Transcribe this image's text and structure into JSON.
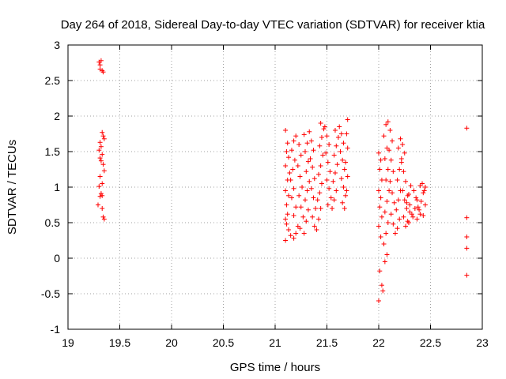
{
  "chart_data": {
    "type": "scatter",
    "title": "Day 264 of 2018, Sidereal Day-to-day VTEC variation (SDTVAR) for receiver ktia",
    "xlabel": "GPS time / hours",
    "ylabel": "SDTVAR / TECUs",
    "xlim": [
      19,
      23
    ],
    "ylim": [
      -1,
      3
    ],
    "xticks": [
      "19",
      "19.5",
      "20",
      "20.5",
      "21",
      "21.5",
      "22",
      "22.5",
      "23"
    ],
    "yticks": [
      "-1",
      "-0.5",
      "0",
      "0.5",
      "1",
      "1.5",
      "2",
      "2.5",
      "3"
    ],
    "grid": true,
    "marker": "+",
    "series": [
      {
        "name": "SDTVAR",
        "color": "#ff0000",
        "points": [
          [
            19.3,
            2.76
          ],
          [
            19.31,
            2.72
          ],
          [
            19.32,
            2.78
          ],
          [
            19.31,
            2.66
          ],
          [
            19.33,
            2.64
          ],
          [
            19.34,
            2.62
          ],
          [
            19.33,
            1.77
          ],
          [
            19.34,
            1.72
          ],
          [
            19.35,
            1.68
          ],
          [
            19.31,
            1.63
          ],
          [
            19.32,
            1.57
          ],
          [
            19.3,
            1.52
          ],
          [
            19.33,
            1.46
          ],
          [
            19.31,
            1.41
          ],
          [
            19.32,
            1.37
          ],
          [
            19.34,
            1.32
          ],
          [
            19.35,
            1.23
          ],
          [
            19.31,
            1.15
          ],
          [
            19.33,
            1.05
          ],
          [
            19.3,
            1.01
          ],
          [
            19.32,
            0.91
          ],
          [
            19.31,
            0.87
          ],
          [
            19.33,
            0.88
          ],
          [
            19.29,
            0.75
          ],
          [
            19.33,
            0.7
          ],
          [
            19.34,
            0.58
          ],
          [
            19.35,
            0.55
          ],
          [
            21.1,
            1.8
          ],
          [
            21.12,
            1.62
          ],
          [
            21.11,
            1.5
          ],
          [
            21.13,
            1.42
          ],
          [
            21.1,
            1.3
          ],
          [
            21.14,
            1.2
          ],
          [
            21.12,
            1.1
          ],
          [
            21.1,
            0.95
          ],
          [
            21.13,
            0.88
          ],
          [
            21.11,
            0.75
          ],
          [
            21.12,
            0.62
          ],
          [
            21.1,
            0.55
          ],
          [
            21.11,
            0.48
          ],
          [
            21.13,
            0.4
          ],
          [
            21.1,
            0.25
          ],
          [
            21.15,
            0.32
          ],
          [
            21.18,
            0.28
          ],
          [
            21.2,
            0.35
          ],
          [
            21.22,
            0.45
          ],
          [
            21.18,
            0.6
          ],
          [
            21.2,
            0.72
          ],
          [
            21.16,
            0.85
          ],
          [
            21.18,
            0.98
          ],
          [
            21.15,
            1.1
          ],
          [
            21.17,
            1.25
          ],
          [
            21.19,
            1.38
          ],
          [
            21.16,
            1.52
          ],
          [
            21.18,
            1.65
          ],
          [
            21.2,
            1.72
          ],
          [
            21.23,
            1.6
          ],
          [
            21.25,
            1.45
          ],
          [
            21.22,
            1.3
          ],
          [
            21.24,
            1.15
          ],
          [
            21.26,
            1.0
          ],
          [
            21.23,
            0.88
          ],
          [
            21.25,
            0.72
          ],
          [
            21.27,
            0.58
          ],
          [
            21.24,
            0.42
          ],
          [
            21.28,
            0.35
          ],
          [
            21.3,
            0.52
          ],
          [
            21.32,
            0.68
          ],
          [
            21.29,
            0.82
          ],
          [
            21.31,
            0.95
          ],
          [
            21.33,
            1.08
          ],
          [
            21.3,
            1.22
          ],
          [
            21.32,
            1.36
          ],
          [
            21.29,
            1.5
          ],
          [
            21.31,
            1.62
          ],
          [
            21.28,
            1.74
          ],
          [
            21.33,
            1.78
          ],
          [
            21.35,
            1.65
          ],
          [
            21.37,
            1.52
          ],
          [
            21.34,
            1.4
          ],
          [
            21.36,
            1.28
          ],
          [
            21.38,
            1.12
          ],
          [
            21.35,
            0.98
          ],
          [
            21.37,
            0.85
          ],
          [
            21.39,
            0.7
          ],
          [
            21.36,
            0.58
          ],
          [
            21.38,
            0.45
          ],
          [
            21.4,
            0.4
          ],
          [
            21.42,
            0.55
          ],
          [
            21.44,
            0.7
          ],
          [
            21.41,
            0.82
          ],
          [
            21.43,
            0.92
          ],
          [
            21.45,
            1.05
          ],
          [
            21.42,
            1.18
          ],
          [
            21.44,
            1.3
          ],
          [
            21.46,
            1.45
          ],
          [
            21.43,
            1.58
          ],
          [
            21.45,
            1.7
          ],
          [
            21.47,
            1.82
          ],
          [
            21.44,
            1.9
          ],
          [
            21.48,
            1.85
          ],
          [
            21.5,
            1.72
          ],
          [
            21.52,
            1.6
          ],
          [
            21.49,
            1.48
          ],
          [
            21.51,
            1.35
          ],
          [
            21.53,
            1.22
          ],
          [
            21.5,
            1.1
          ],
          [
            21.52,
            0.98
          ],
          [
            21.54,
            0.85
          ],
          [
            21.51,
            0.75
          ],
          [
            21.55,
            0.7
          ],
          [
            21.57,
            0.82
          ],
          [
            21.59,
            0.95
          ],
          [
            21.56,
            1.08
          ],
          [
            21.58,
            1.2
          ],
          [
            21.6,
            1.32
          ],
          [
            21.57,
            1.45
          ],
          [
            21.59,
            1.58
          ],
          [
            21.61,
            1.7
          ],
          [
            21.58,
            1.8
          ],
          [
            21.62,
            1.85
          ],
          [
            21.64,
            1.75
          ],
          [
            21.66,
            1.62
          ],
          [
            21.63,
            1.5
          ],
          [
            21.65,
            1.38
          ],
          [
            21.67,
            1.25
          ],
          [
            21.64,
            1.12
          ],
          [
            21.66,
            1.0
          ],
          [
            21.68,
            0.88
          ],
          [
            21.65,
            0.78
          ],
          [
            21.67,
            0.7
          ],
          [
            21.69,
            0.95
          ],
          [
            21.7,
            1.15
          ],
          [
            21.68,
            1.35
          ],
          [
            21.7,
            1.55
          ],
          [
            21.69,
            1.75
          ],
          [
            21.7,
            1.95
          ],
          [
            22.0,
            1.48
          ],
          [
            22.02,
            1.38
          ],
          [
            22.01,
            1.25
          ],
          [
            22.03,
            1.1
          ],
          [
            22.0,
            0.95
          ],
          [
            22.02,
            0.85
          ],
          [
            22.01,
            0.72
          ],
          [
            22.03,
            0.58
          ],
          [
            22.0,
            0.45
          ],
          [
            22.02,
            0.3
          ],
          [
            22.01,
            -0.18
          ],
          [
            22.03,
            -0.38
          ],
          [
            22.0,
            -0.6
          ],
          [
            22.04,
            -0.46
          ],
          [
            22.06,
            -0.05
          ],
          [
            22.08,
            0.05
          ],
          [
            22.05,
            0.2
          ],
          [
            22.07,
            0.35
          ],
          [
            22.09,
            0.5
          ],
          [
            22.06,
            0.65
          ],
          [
            22.08,
            0.8
          ],
          [
            22.1,
            0.95
          ],
          [
            22.07,
            1.1
          ],
          [
            22.09,
            1.25
          ],
          [
            22.06,
            1.4
          ],
          [
            22.08,
            1.55
          ],
          [
            22.05,
            1.72
          ],
          [
            22.07,
            1.88
          ],
          [
            22.09,
            1.92
          ],
          [
            22.11,
            1.8
          ],
          [
            22.13,
            1.65
          ],
          [
            22.1,
            1.52
          ],
          [
            22.12,
            1.38
          ],
          [
            22.14,
            1.22
          ],
          [
            22.11,
            1.08
          ],
          [
            22.13,
            0.92
          ],
          [
            22.15,
            0.78
          ],
          [
            22.12,
            0.62
          ],
          [
            22.14,
            0.48
          ],
          [
            22.16,
            0.35
          ],
          [
            22.18,
            0.42
          ],
          [
            22.2,
            0.55
          ],
          [
            22.17,
            0.68
          ],
          [
            22.19,
            0.82
          ],
          [
            22.21,
            0.95
          ],
          [
            22.18,
            1.1
          ],
          [
            22.2,
            1.25
          ],
          [
            22.22,
            1.4
          ],
          [
            22.19,
            1.55
          ],
          [
            22.21,
            1.68
          ],
          [
            22.23,
            1.6
          ],
          [
            22.25,
            1.48
          ],
          [
            22.22,
            1.35
          ],
          [
            22.24,
            1.22
          ],
          [
            22.26,
            1.08
          ],
          [
            22.23,
            0.95
          ],
          [
            22.25,
            0.82
          ],
          [
            22.27,
            0.7
          ],
          [
            22.24,
            0.58
          ],
          [
            22.26,
            0.45
          ],
          [
            22.28,
            0.52
          ],
          [
            22.3,
            0.65
          ],
          [
            22.27,
            0.78
          ],
          [
            22.29,
            0.9
          ],
          [
            22.31,
            1.02
          ],
          [
            22.28,
            0.88
          ],
          [
            22.3,
            0.75
          ],
          [
            22.32,
            0.62
          ],
          [
            22.29,
            0.5
          ],
          [
            22.33,
            0.58
          ],
          [
            22.35,
            0.7
          ],
          [
            22.37,
            0.82
          ],
          [
            22.34,
            0.95
          ],
          [
            22.36,
            0.85
          ],
          [
            22.38,
            0.72
          ],
          [
            22.4,
            0.62
          ],
          [
            22.37,
            0.55
          ],
          [
            22.39,
            0.68
          ],
          [
            22.41,
            0.8
          ],
          [
            22.43,
            0.92
          ],
          [
            22.4,
            1.02
          ],
          [
            22.42,
            1.05
          ],
          [
            22.44,
            0.95
          ],
          [
            22.45,
            0.75
          ],
          [
            22.43,
            0.6
          ],
          [
            22.45,
            1.0
          ],
          [
            22.85,
            1.83
          ],
          [
            22.85,
            0.57
          ],
          [
            22.85,
            0.3
          ],
          [
            22.85,
            0.14
          ],
          [
            22.85,
            -0.24
          ]
        ]
      }
    ]
  }
}
